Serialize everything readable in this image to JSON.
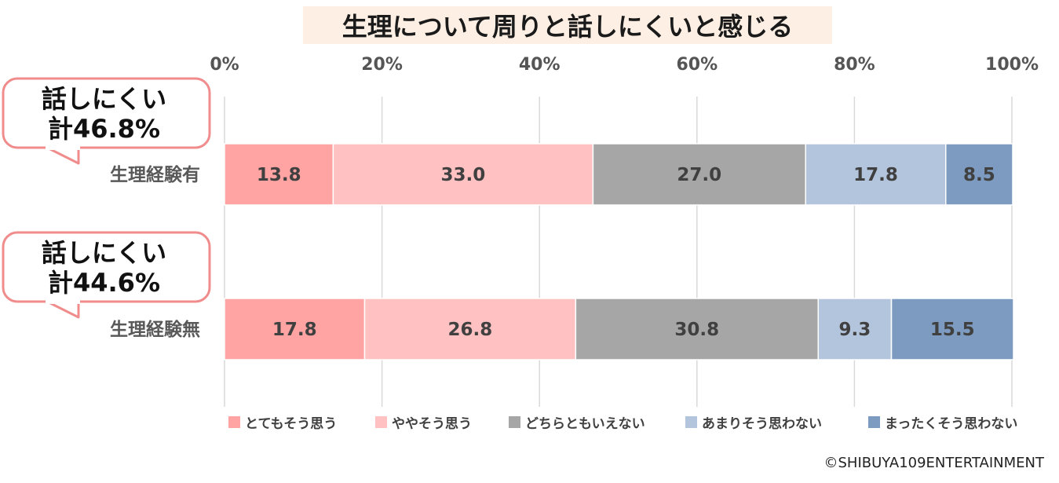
{
  "chart_data": {
    "type": "bar",
    "orientation": "horizontal",
    "stacked": "percent",
    "title": "生理について周りと話しにくいと感じる",
    "xlim": [
      0,
      100
    ],
    "x_ticks": [
      "0%",
      "20%",
      "40%",
      "60%",
      "80%",
      "100%"
    ],
    "grid": true,
    "legend_position": "bottom",
    "categories": [
      "生理経験有",
      "生理経験無"
    ],
    "series": [
      {
        "name": "とてもそう思う",
        "color": "#FFA3A3",
        "values": [
          13.8,
          17.8
        ],
        "labels": [
          "13.8",
          "17.8"
        ]
      },
      {
        "name": "ややそう思う",
        "color": "#FFC1C1",
        "values": [
          33.0,
          26.8
        ],
        "labels": [
          "33.0",
          "26.8"
        ]
      },
      {
        "name": "どちらともいえない",
        "color": "#A6A6A6",
        "values": [
          27.0,
          30.8
        ],
        "labels": [
          "27.0",
          "30.8"
        ]
      },
      {
        "name": "あまりそう思わない",
        "color": "#B3C5DC",
        "values": [
          17.8,
          9.3
        ],
        "labels": [
          "17.8",
          "9.3"
        ]
      },
      {
        "name": "まったくそう思わない",
        "color": "#7D9BC0",
        "values": [
          8.5,
          15.5
        ],
        "labels": [
          "8.5",
          "15.5"
        ]
      }
    ],
    "annotations": [
      {
        "lines": [
          "話しにくい",
          "計46.8%"
        ],
        "category": "生理経験有"
      },
      {
        "lines": [
          "話しにくい",
          "計44.6%"
        ],
        "category": "生理経験無"
      }
    ]
  },
  "copyright": "©SHIBUYA109ENTERTAINMENT",
  "colors": {
    "title_highlight": "#FDEFE3",
    "callout_border": "#F08C8C",
    "gridline": "#D9D9D9"
  }
}
